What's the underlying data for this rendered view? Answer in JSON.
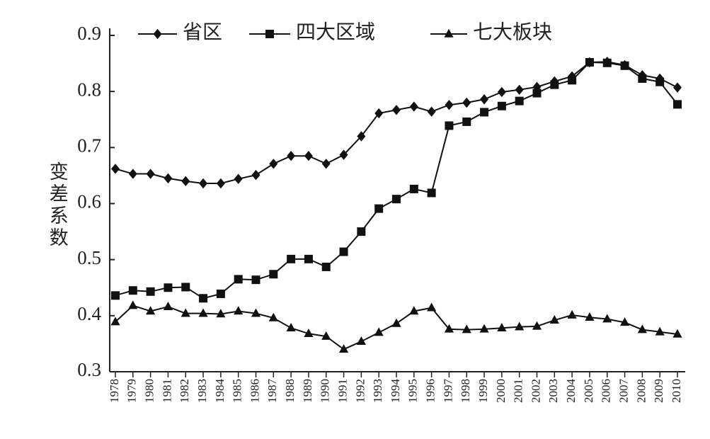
{
  "chart_data": {
    "type": "line",
    "y_label": "变差系数",
    "categories": [
      "1978",
      "1979",
      "1980",
      "1981",
      "1982",
      "1983",
      "1984",
      "1985",
      "1986",
      "1987",
      "1988",
      "1989",
      "1990",
      "1991",
      "1992",
      "1993",
      "1994",
      "1995",
      "1996",
      "1997",
      "1998",
      "1999",
      "2000",
      "2001",
      "2002",
      "2003",
      "2004",
      "2005",
      "2006",
      "2007",
      "2008",
      "2009",
      "2010"
    ],
    "series": [
      {
        "name": "省区",
        "color": "#111111",
        "marker": "diamond",
        "values": [
          0.662,
          0.653,
          0.653,
          0.645,
          0.64,
          0.636,
          0.636,
          0.644,
          0.651,
          0.671,
          0.685,
          0.685,
          0.671,
          0.687,
          0.72,
          0.761,
          0.767,
          0.773,
          0.764,
          0.776,
          0.78,
          0.786,
          0.799,
          0.803,
          0.808,
          0.818,
          0.827,
          0.852,
          0.853,
          0.847,
          0.829,
          0.823,
          0.807
        ]
      },
      {
        "name": "四大区域",
        "color": "#111111",
        "marker": "square",
        "values": [
          0.436,
          0.445,
          0.443,
          0.45,
          0.451,
          0.431,
          0.439,
          0.465,
          0.464,
          0.474,
          0.501,
          0.501,
          0.487,
          0.514,
          0.55,
          0.591,
          0.608,
          0.626,
          0.619,
          0.739,
          0.746,
          0.763,
          0.774,
          0.783,
          0.797,
          0.812,
          0.82,
          0.852,
          0.851,
          0.846,
          0.823,
          0.817,
          0.777
        ]
      },
      {
        "name": "七大板块",
        "color": "#111111",
        "marker": "triangle",
        "values": [
          0.389,
          0.418,
          0.408,
          0.416,
          0.404,
          0.404,
          0.403,
          0.408,
          0.404,
          0.396,
          0.378,
          0.368,
          0.363,
          0.34,
          0.354,
          0.37,
          0.386,
          0.408,
          0.414,
          0.376,
          0.375,
          0.376,
          0.378,
          0.38,
          0.381,
          0.392,
          0.401,
          0.397,
          0.394,
          0.388,
          0.375,
          0.371,
          0.367
        ]
      }
    ],
    "ylim": [
      0.3,
      0.9
    ],
    "yticks": [
      0.3,
      0.4,
      0.5,
      0.6,
      0.7,
      0.8,
      0.9
    ],
    "grid": false,
    "legend": "top"
  }
}
